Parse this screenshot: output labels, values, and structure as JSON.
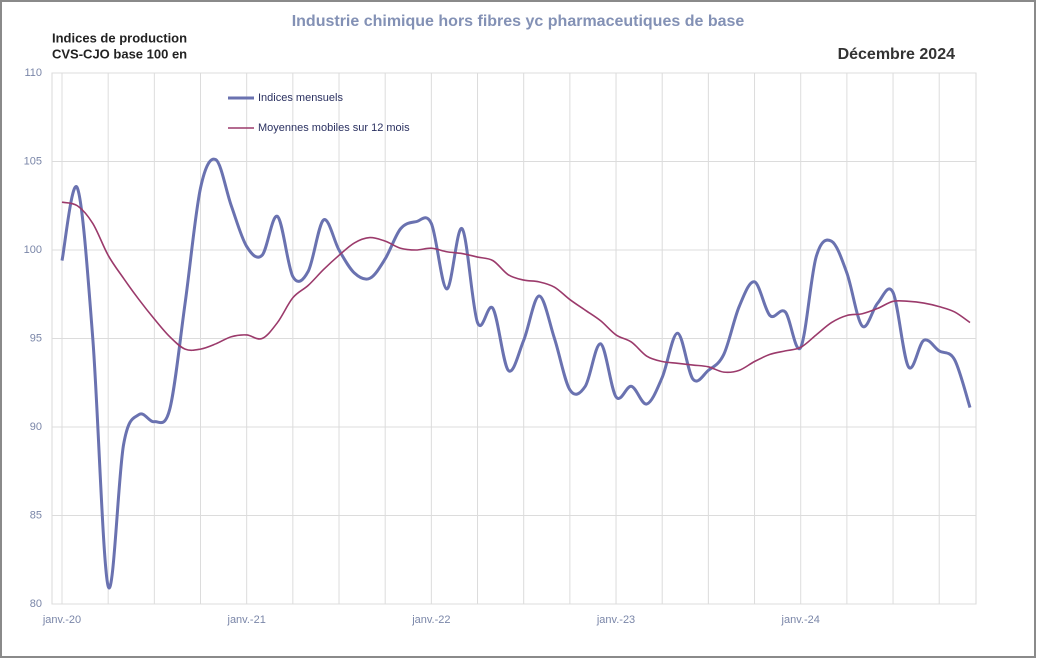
{
  "chart_data": {
    "type": "line",
    "title": "Industrie chimique hors fibres yc pharmaceutiques de base",
    "y_label": [
      "Indices de production",
      "CVS-CJO base 100 en"
    ],
    "date_label": "Décembre 2024",
    "categories": [
      "janv.-20",
      null,
      null,
      null,
      null,
      null,
      null,
      null,
      null,
      null,
      null,
      null,
      "janv.-21",
      null,
      null,
      null,
      null,
      null,
      null,
      null,
      null,
      null,
      null,
      null,
      "janv.-22",
      null,
      null,
      null,
      null,
      null,
      null,
      null,
      null,
      null,
      null,
      null,
      "janv.-23",
      null,
      null,
      null,
      null,
      null,
      null,
      null,
      null,
      null,
      null,
      null,
      "janv.-24",
      null,
      null,
      null,
      null,
      null,
      null,
      null,
      null,
      null,
      null,
      null
    ],
    "series": [
      {
        "name": "Indices mensuels",
        "color": "#6a72b0",
        "values": [
          99.4,
          103.5,
          95,
          81,
          89,
          90.7,
          90.3,
          91,
          97,
          103.5,
          105.1,
          102.5,
          100.2,
          99.7,
          101.9,
          98.5,
          98.8,
          101.7,
          100,
          98.7,
          98.4,
          99.5,
          101.2,
          101.6,
          101.5,
          97.8,
          101.2,
          95.9,
          96.7,
          93.2,
          94.9,
          97.4,
          95,
          92.1,
          92.3,
          94.7,
          91.7,
          92.3,
          91.3,
          92.8,
          95.3,
          92.7,
          93.2,
          94.1,
          96.8,
          98.2,
          96.3,
          96.5,
          94.5,
          99.6,
          100.5,
          98.7,
          95.7,
          97,
          97.6,
          93.4,
          94.9,
          94.3,
          93.8,
          91.1
        ]
      },
      {
        "name": "Moyennes mobiles sur 12 mois",
        "color": "#9b3a6b",
        "values": [
          102.7,
          102.5,
          101.5,
          99.7,
          98.4,
          97.2,
          96.1,
          95.1,
          94.4,
          94.4,
          94.7,
          95.1,
          95.2,
          95,
          95.9,
          97.3,
          98,
          98.9,
          99.7,
          100.4,
          100.7,
          100.5,
          100.1,
          100,
          100.1,
          99.9,
          99.8,
          99.6,
          99.4,
          98.6,
          98.3,
          98.2,
          97.9,
          97.2,
          96.6,
          96,
          95.2,
          94.8,
          94,
          93.7,
          93.6,
          93.5,
          93.4,
          93.1,
          93.2,
          93.7,
          94.1,
          94.3,
          94.5,
          95.2,
          95.9,
          96.3,
          96.4,
          96.7,
          97.1,
          97.1,
          97,
          96.8,
          96.5,
          95.9
        ]
      }
    ],
    "ylim": [
      80,
      110
    ],
    "yticks": [
      80,
      85,
      90,
      95,
      100,
      105,
      110
    ],
    "grid": true
  }
}
